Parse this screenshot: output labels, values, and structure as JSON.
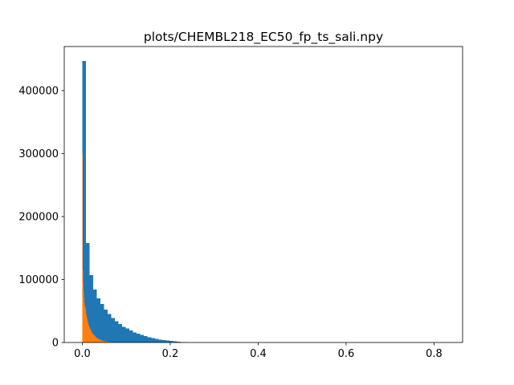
{
  "chart_data": {
    "type": "bar",
    "title": "plots/CHEMBL218_EC50_fp_ts_sali.npy",
    "xlabel": "",
    "ylabel": "",
    "xlim": [
      -0.041,
      0.865
    ],
    "ylim": [
      0,
      470000
    ],
    "grid": false,
    "x_ticks": [
      0.0,
      0.2,
      0.4,
      0.6,
      0.8
    ],
    "x_tick_labels": [
      "0.0",
      "0.2",
      "0.4",
      "0.6",
      "0.8"
    ],
    "y_ticks": [
      0,
      100000,
      200000,
      300000,
      400000
    ],
    "y_tick_labels": [
      "0",
      "100000",
      "200000",
      "300000",
      "400000"
    ],
    "series": [
      {
        "color": "#1f77b4",
        "bin_start": 0.0,
        "bin_width": 0.00825,
        "values": [
          447000,
          158000,
          107000,
          84000,
          70000,
          61000,
          52000,
          45000,
          39000,
          34000,
          29000,
          25000,
          22000,
          19000,
          16000,
          14000,
          12000,
          10000,
          8500,
          7000,
          5800,
          4700,
          3800,
          3000,
          2300,
          1800,
          1300,
          900,
          600,
          300,
          150,
          80,
          40,
          20,
          10,
          5,
          3,
          2,
          1
        ]
      },
      {
        "color": "#ff7f0e",
        "bin_start": 0.0,
        "bin_width": 0.001,
        "values": [
          300000,
          115000,
          95000,
          80000,
          70000,
          63000,
          57000,
          52000,
          47000,
          43000,
          40000,
          37000,
          34000,
          31000,
          28500,
          26500,
          24500,
          22500,
          21000,
          19500,
          18000,
          16800,
          15700,
          14700,
          13700,
          12800,
          12000,
          11200,
          10500,
          9800,
          9100,
          8500,
          7900,
          7400,
          6900,
          6400,
          6000,
          5600,
          5200,
          4800,
          4500,
          4200,
          3900,
          3600,
          3350,
          3100,
          2900,
          2700,
          2500,
          2300,
          2150,
          2000,
          1850,
          1700,
          1580,
          1460,
          1350,
          1250,
          1150,
          1060,
          980,
          900,
          830,
          760,
          700,
          640,
          590,
          540,
          500,
          460,
          420,
          385,
          350,
          320,
          290,
          265,
          240,
          220,
          200,
          180,
          160,
          145,
          130,
          115,
          100,
          90,
          80,
          70,
          60,
          50
        ]
      }
    ]
  }
}
